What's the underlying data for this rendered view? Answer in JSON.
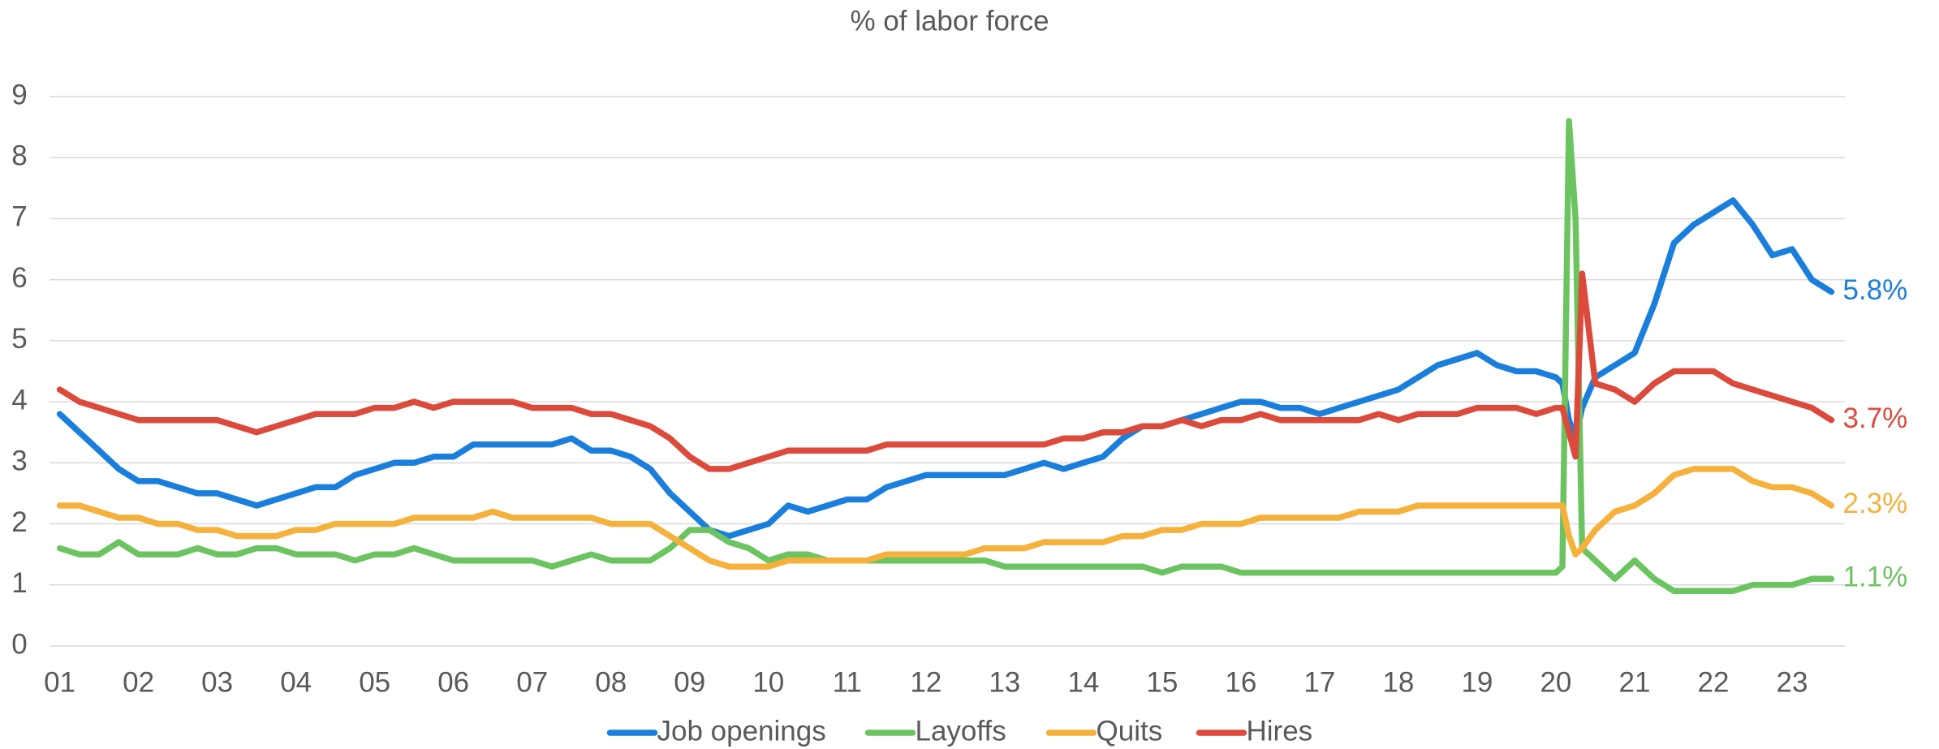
{
  "chart_data": {
    "type": "line",
    "title": "% of labor force",
    "x": [
      1,
      1.25,
      1.5,
      1.75,
      2,
      2.25,
      2.5,
      2.75,
      3,
      3.25,
      3.5,
      3.75,
      4,
      4.25,
      4.5,
      4.75,
      5,
      5.25,
      5.5,
      5.75,
      6,
      6.25,
      6.5,
      6.75,
      7,
      7.25,
      7.5,
      7.75,
      8,
      8.25,
      8.5,
      8.75,
      9,
      9.25,
      9.5,
      9.75,
      10,
      10.25,
      10.5,
      10.75,
      11,
      11.25,
      11.5,
      11.75,
      12,
      12.25,
      12.5,
      12.75,
      13,
      13.25,
      13.5,
      13.75,
      14,
      14.25,
      14.5,
      14.75,
      15,
      15.25,
      15.5,
      15.75,
      16,
      16.25,
      16.5,
      16.75,
      17,
      17.25,
      17.5,
      17.75,
      18,
      18.25,
      18.5,
      18.75,
      19,
      19.25,
      19.5,
      19.75,
      20,
      20.083,
      20.167,
      20.25,
      20.333,
      20.5,
      20.75,
      21,
      21.25,
      21.5,
      21.75,
      22,
      22.25,
      22.5,
      22.75,
      23,
      23.25,
      23.5
    ],
    "series": [
      {
        "name": "Job openings",
        "color": "#1a7fdc",
        "end_label": "5.8%",
        "values": [
          3.8,
          3.5,
          3.2,
          2.9,
          2.7,
          2.7,
          2.6,
          2.5,
          2.5,
          2.4,
          2.3,
          2.4,
          2.5,
          2.6,
          2.6,
          2.8,
          2.9,
          3.0,
          3.0,
          3.1,
          3.1,
          3.3,
          3.3,
          3.3,
          3.3,
          3.3,
          3.4,
          3.2,
          3.2,
          3.1,
          2.9,
          2.5,
          2.2,
          1.9,
          1.8,
          1.9,
          2.0,
          2.3,
          2.2,
          2.3,
          2.4,
          2.4,
          2.6,
          2.7,
          2.8,
          2.8,
          2.8,
          2.8,
          2.8,
          2.9,
          3.0,
          2.9,
          3.0,
          3.1,
          3.4,
          3.6,
          3.6,
          3.7,
          3.8,
          3.9,
          4.0,
          4.0,
          3.9,
          3.9,
          3.8,
          3.9,
          4.0,
          4.1,
          4.2,
          4.4,
          4.6,
          4.7,
          4.8,
          4.6,
          4.5,
          4.5,
          4.4,
          4.3,
          3.7,
          3.4,
          3.9,
          4.4,
          4.6,
          4.8,
          5.6,
          6.6,
          6.9,
          7.1,
          7.3,
          6.9,
          6.4,
          6.5,
          6.0,
          5.8
        ]
      },
      {
        "name": "Layoffs",
        "color": "#6cc461",
        "end_label": "1.1%",
        "values": [
          1.6,
          1.5,
          1.5,
          1.7,
          1.5,
          1.5,
          1.5,
          1.6,
          1.5,
          1.5,
          1.6,
          1.6,
          1.5,
          1.5,
          1.5,
          1.4,
          1.5,
          1.5,
          1.6,
          1.5,
          1.4,
          1.4,
          1.4,
          1.4,
          1.4,
          1.3,
          1.4,
          1.5,
          1.4,
          1.4,
          1.4,
          1.6,
          1.9,
          1.9,
          1.7,
          1.6,
          1.4,
          1.5,
          1.5,
          1.4,
          1.4,
          1.4,
          1.4,
          1.4,
          1.4,
          1.4,
          1.4,
          1.4,
          1.3,
          1.3,
          1.3,
          1.3,
          1.3,
          1.3,
          1.3,
          1.3,
          1.2,
          1.3,
          1.3,
          1.3,
          1.2,
          1.2,
          1.2,
          1.2,
          1.2,
          1.2,
          1.2,
          1.2,
          1.2,
          1.2,
          1.2,
          1.2,
          1.2,
          1.2,
          1.2,
          1.2,
          1.2,
          1.3,
          8.6,
          7.0,
          1.6,
          1.4,
          1.1,
          1.4,
          1.1,
          0.9,
          0.9,
          0.9,
          0.9,
          1.0,
          1.0,
          1.0,
          1.1,
          1.1
        ]
      },
      {
        "name": "Quits",
        "color": "#f5b13c",
        "end_label": "2.3%",
        "values": [
          2.3,
          2.3,
          2.2,
          2.1,
          2.1,
          2.0,
          2.0,
          1.9,
          1.9,
          1.8,
          1.8,
          1.8,
          1.9,
          1.9,
          2.0,
          2.0,
          2.0,
          2.0,
          2.1,
          2.1,
          2.1,
          2.1,
          2.2,
          2.1,
          2.1,
          2.1,
          2.1,
          2.1,
          2.0,
          2.0,
          2.0,
          1.8,
          1.6,
          1.4,
          1.3,
          1.3,
          1.3,
          1.4,
          1.4,
          1.4,
          1.4,
          1.4,
          1.5,
          1.5,
          1.5,
          1.5,
          1.5,
          1.6,
          1.6,
          1.6,
          1.7,
          1.7,
          1.7,
          1.7,
          1.8,
          1.8,
          1.9,
          1.9,
          2.0,
          2.0,
          2.0,
          2.1,
          2.1,
          2.1,
          2.1,
          2.1,
          2.2,
          2.2,
          2.2,
          2.3,
          2.3,
          2.3,
          2.3,
          2.3,
          2.3,
          2.3,
          2.3,
          2.3,
          1.8,
          1.5,
          1.6,
          1.9,
          2.2,
          2.3,
          2.5,
          2.8,
          2.9,
          2.9,
          2.9,
          2.7,
          2.6,
          2.6,
          2.5,
          2.3
        ]
      },
      {
        "name": "Hires",
        "color": "#dc4a3c",
        "end_label": "3.7%",
        "values": [
          4.2,
          4.0,
          3.9,
          3.8,
          3.7,
          3.7,
          3.7,
          3.7,
          3.7,
          3.6,
          3.5,
          3.6,
          3.7,
          3.8,
          3.8,
          3.8,
          3.9,
          3.9,
          4.0,
          3.9,
          4.0,
          4.0,
          4.0,
          4.0,
          3.9,
          3.9,
          3.9,
          3.8,
          3.8,
          3.7,
          3.6,
          3.4,
          3.1,
          2.9,
          2.9,
          3.0,
          3.1,
          3.2,
          3.2,
          3.2,
          3.2,
          3.2,
          3.3,
          3.3,
          3.3,
          3.3,
          3.3,
          3.3,
          3.3,
          3.3,
          3.3,
          3.4,
          3.4,
          3.5,
          3.5,
          3.6,
          3.6,
          3.7,
          3.6,
          3.7,
          3.7,
          3.8,
          3.7,
          3.7,
          3.7,
          3.7,
          3.7,
          3.8,
          3.7,
          3.8,
          3.8,
          3.8,
          3.9,
          3.9,
          3.9,
          3.8,
          3.9,
          3.9,
          3.5,
          3.1,
          6.1,
          4.3,
          4.2,
          4.0,
          4.3,
          4.5,
          4.5,
          4.5,
          4.3,
          4.2,
          4.1,
          4.0,
          3.9,
          3.7
        ]
      }
    ],
    "xlim": [
      0.87,
      23.67
    ],
    "xticks": [
      {
        "value": 1,
        "label": "01"
      },
      {
        "value": 2,
        "label": "02"
      },
      {
        "value": 3,
        "label": "03"
      },
      {
        "value": 4,
        "label": "04"
      },
      {
        "value": 5,
        "label": "05"
      },
      {
        "value": 6,
        "label": "06"
      },
      {
        "value": 7,
        "label": "07"
      },
      {
        "value": 8,
        "label": "08"
      },
      {
        "value": 9,
        "label": "09"
      },
      10,
      11,
      12,
      13,
      14,
      15,
      16,
      17,
      18,
      19,
      20,
      21,
      22,
      23
    ],
    "ylim": [
      0,
      9
    ],
    "yticks": [
      0,
      1,
      2,
      3,
      4,
      5,
      6,
      7,
      8,
      9
    ],
    "grid": true,
    "legend": "bottom"
  }
}
